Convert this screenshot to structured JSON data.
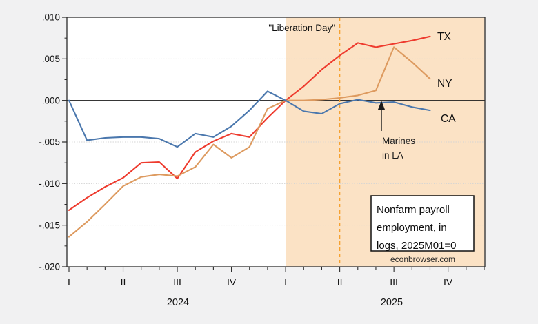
{
  "page": {
    "background": "#f1f1f2"
  },
  "chart_data": {
    "type": "line",
    "title": "Nonfarm payroll employment, in logs, 2025M01=0",
    "source": "econbrowser.com",
    "x": [
      "2024M01",
      "2024M02",
      "2024M03",
      "2024M04",
      "2024M05",
      "2024M06",
      "2024M07",
      "2024M08",
      "2024M09",
      "2024M10",
      "2024M11",
      "2024M12",
      "2025M01",
      "2025M02",
      "2025M03",
      "2025M04",
      "2025M05",
      "2025M06",
      "2025M07",
      "2025M08",
      "2025M09"
    ],
    "x_axis": {
      "start": "2024M01",
      "end": "2025M12",
      "quarter_labels": [
        "I",
        "II",
        "III",
        "IV",
        "I",
        "II",
        "III",
        "IV"
      ],
      "year_labels": [
        "2024",
        "2025"
      ]
    },
    "y_axis": {
      "min": -0.02,
      "max": 0.01,
      "major_step": 0.005,
      "tick_labels": [
        ".010",
        ".005",
        ".000",
        "-.005",
        "-.010",
        "-.015",
        "-.020"
      ]
    },
    "series": [
      {
        "name": "TX",
        "color": "#ee3b2e",
        "label_color": "#e2342b",
        "values": [
          -0.0132,
          -0.0117,
          -0.0104,
          -0.0093,
          -0.0075,
          -0.0074,
          -0.0094,
          -0.0062,
          -0.0049,
          -0.004,
          -0.0044,
          -0.0021,
          0.0,
          0.0017,
          0.0037,
          0.0054,
          0.0069,
          0.0064,
          0.0068,
          0.0072,
          0.0077
        ]
      },
      {
        "name": "NY",
        "color": "#dd9a5f",
        "label_color": "#cf8c28",
        "values": [
          -0.0164,
          -0.0146,
          -0.0125,
          -0.0103,
          -0.0092,
          -0.0089,
          -0.0091,
          -0.008,
          -0.0053,
          -0.0069,
          -0.0056,
          -0.001,
          0.0,
          0.0,
          0.0001,
          0.0003,
          0.0006,
          0.0012,
          0.0064,
          0.0046,
          0.0026
        ]
      },
      {
        "name": "CA",
        "color": "#4a77ad",
        "label_color": "#3d6ba3",
        "values": [
          0.0,
          -0.0048,
          -0.0045,
          -0.0044,
          -0.0044,
          -0.0046,
          -0.0056,
          -0.004,
          -0.0044,
          -0.0031,
          -0.0012,
          0.0011,
          0.0,
          -0.0013,
          -0.0016,
          -0.0004,
          0.0001,
          -0.0003,
          -0.0002,
          -0.0008,
          -0.0012
        ]
      }
    ],
    "shaded_region": {
      "start": "2025M01",
      "end": "2025M12",
      "color": "#fbe2c5"
    },
    "vline": {
      "at": "2025M04",
      "style": "dashed",
      "color": "#f6a12f",
      "label": "\"Liberation Day\""
    },
    "annotations": {
      "liberation_day": "\"Liberation Day\"",
      "marines_line1": "Marines",
      "marines_line2": "in LA",
      "marines_points_at": "2025M06",
      "note_line1": "Nonfarm payroll",
      "note_line2": "employment, in",
      "note_line3": "logs, 2025M01=0",
      "credit": "econbrowser.com"
    }
  }
}
